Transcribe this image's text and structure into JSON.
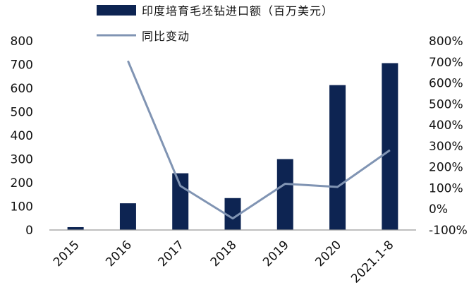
{
  "chart_data": {
    "type": "bar",
    "categories": [
      "2015",
      "2016",
      "2017",
      "2018",
      "2019",
      "2020",
      "2021.1-8"
    ],
    "series": [
      {
        "name": "印度培育毛坯钻进口额（百万美元）",
        "type": "bar",
        "axis": "left",
        "color": "#0d2452",
        "values": [
          12,
          113,
          240,
          135,
          300,
          613,
          706
        ]
      },
      {
        "name": "同比变动",
        "type": "line",
        "axis": "right",
        "color": "#8094b3",
        "values": [
          null,
          705,
          110,
          -45,
          120,
          105,
          280
        ]
      }
    ],
    "y_left": {
      "ylim": [
        0,
        800
      ],
      "ticks": [
        "0",
        "100",
        "200",
        "300",
        "400",
        "500",
        "600",
        "700",
        "800"
      ]
    },
    "y_right": {
      "ylim": [
        -100,
        800
      ],
      "ticks": [
        "-100%",
        "0%",
        "100%",
        "200%",
        "300%",
        "400%",
        "500%",
        "600%",
        "700%",
        "800%"
      ]
    },
    "legend": {
      "position": "top"
    },
    "grid": false
  }
}
